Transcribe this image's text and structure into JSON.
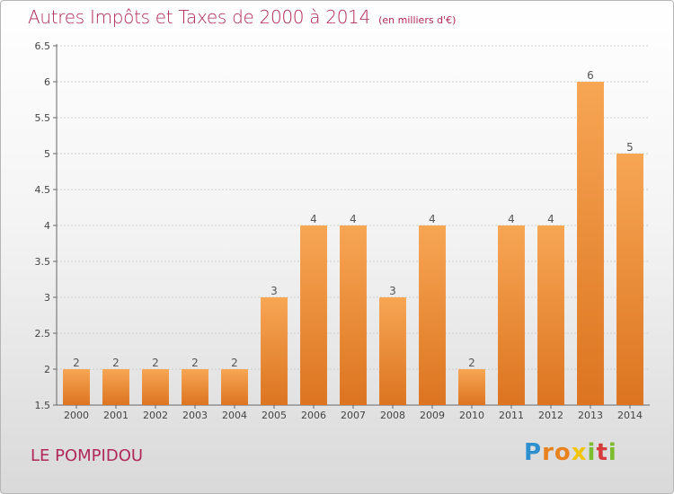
{
  "title": "Autres Impôts et Taxes de 2000 à 2014",
  "subtitle": "(en milliers d'€)",
  "commune": "LE POMPIDOU",
  "brand": {
    "text": "Proxiti",
    "letters": [
      {
        "ch": "P",
        "color": "#2e8fcf"
      },
      {
        "ch": "r",
        "color": "#e8821e"
      },
      {
        "ch": "o",
        "color": "#e8821e"
      },
      {
        "ch": "x",
        "color": "#f2c40c"
      },
      {
        "ch": "i",
        "color": "#7dbb2f"
      },
      {
        "ch": "t",
        "color": "#d63c3c"
      },
      {
        "ch": "i",
        "color": "#7dbb2f"
      }
    ]
  },
  "colors": {
    "accent": "#b0285a",
    "bar_top": "#f7a654",
    "bar_bottom": "#dc7420",
    "axis": "#666666",
    "grid": "#cfcfcf"
  },
  "chart_data": {
    "type": "bar",
    "categories": [
      "2000",
      "2001",
      "2002",
      "2003",
      "2004",
      "2005",
      "2006",
      "2007",
      "2008",
      "2009",
      "2010",
      "2011",
      "2012",
      "2013",
      "2014"
    ],
    "values": [
      2,
      2,
      2,
      2,
      2,
      3,
      4,
      4,
      3,
      4,
      2,
      4,
      4,
      6,
      5
    ],
    "data_labels": [
      "2",
      "2",
      "2",
      "2",
      "2",
      "3",
      "4",
      "4",
      "3",
      "4",
      "2",
      "4",
      "4",
      "6",
      "5"
    ],
    "ylim": [
      1.5,
      6.5
    ],
    "yticks": [
      "1.5",
      "2",
      "2.5",
      "3",
      "3.5",
      "4",
      "4.5",
      "5",
      "5.5",
      "6",
      "6.5"
    ],
    "grid": true,
    "xlabel": "",
    "ylabel": ""
  }
}
